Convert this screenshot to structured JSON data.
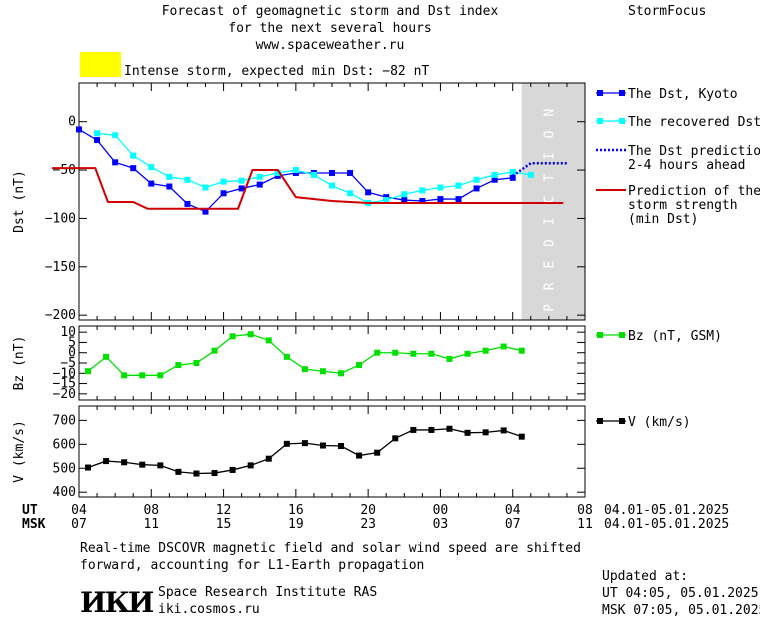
{
  "header": {
    "title_lines": [
      "Forecast of geomagnetic storm and Dst index",
      "for the next several hours",
      "www.spaceweather.ru"
    ],
    "brand": "StormFocus",
    "status_text": "Intense storm, expected min Dst: −82 nT",
    "status_color": "#ffff00"
  },
  "footer": {
    "note_lines": [
      "Real-time DSCOVR magnetic field and solar wind speed are shifted",
      "forward, accounting for L1-Earth propagation"
    ],
    "institute_name": "Space Research Institute RAS",
    "institute_url": "iki.cosmos.ru",
    "logo_text": "ИКИ",
    "updated_label": "Updated at:",
    "updated_ut": "UT   04:05, 05.01.2025",
    "updated_msk": "MSK 07:05, 05.01.2025"
  },
  "chart_data": [
    {
      "type": "line",
      "ylabel": "Dst (nT)",
      "ylim": [
        -205,
        40
      ],
      "yticks": [
        0,
        -50,
        -100,
        -150,
        -200
      ],
      "xlim": [
        4,
        32
      ],
      "prediction_region": {
        "x": [
          4,
          7.5
        ],
        "label": "PREDICTION",
        "color": "#d8d8d8"
      },
      "series": [
        {
          "name": "The Dst, Kyoto",
          "color": "#0000ff",
          "marker": "square",
          "x": [
            4,
            5,
            6,
            7,
            8,
            9,
            10,
            11,
            12,
            13,
            14,
            15,
            16,
            17,
            18,
            19,
            20,
            21,
            22,
            23,
            24,
            25,
            26,
            27,
            28
          ],
          "y": [
            -8,
            -19,
            -42,
            -48,
            -64,
            -67,
            -85,
            -93,
            -74,
            -69,
            -65,
            -56,
            -53,
            -53,
            -53,
            -53,
            -73,
            -78,
            -81,
            -82,
            -80,
            -80,
            -69,
            -60,
            -58
          ]
        },
        {
          "name": "The recovered Dst",
          "color": "#00ffff",
          "marker": "square",
          "x": [
            5,
            6,
            7,
            8,
            9,
            10,
            11,
            12,
            13,
            14,
            15,
            16,
            17,
            18,
            19,
            20,
            21,
            22,
            23,
            24,
            25,
            26,
            27,
            28,
            29
          ],
          "y": [
            -12,
            -14,
            -35,
            -47,
            -57,
            -60,
            -68,
            -62,
            -61,
            -57,
            -53,
            -50,
            -55,
            -66,
            -74,
            -84,
            -81,
            -75,
            -71,
            -68,
            -66,
            -60,
            -55,
            -52,
            -55
          ]
        },
        {
          "name": "The Dst prediction\n2-4 hours ahead",
          "color": "#0000ff",
          "style": "dotted",
          "x": [
            28,
            29,
            30,
            31
          ],
          "y": [
            -56,
            -43,
            -43,
            -43
          ]
        },
        {
          "name": "Prediction of the\nstorm strength\n(min Dst)",
          "color": "#d00000",
          "style": "step",
          "x": [
            2.5,
            4.9,
            5.6,
            7,
            7.8,
            12.8,
            13.6,
            15,
            16,
            18,
            20,
            30.8
          ],
          "y": [
            -48,
            -48,
            -83,
            -83,
            -90,
            -90,
            -50,
            -50,
            -78,
            -82,
            -84,
            -84
          ]
        }
      ]
    },
    {
      "type": "line",
      "ylabel": "Bz (nT)",
      "ylim": [
        -23,
        13
      ],
      "yticks": [
        10,
        5,
        0,
        -5,
        -10,
        -15,
        -20
      ],
      "ytick_labels": [
        "10",
        "5",
        "0",
        "−5",
        "−10",
        "−15",
        "−20"
      ],
      "series": [
        {
          "name": "Bz (nT, GSM)",
          "color": "#00e000",
          "marker": "square",
          "x": [
            4.5,
            5.5,
            6.5,
            7.5,
            8.5,
            9.5,
            10.5,
            11.5,
            12.5,
            13.5,
            14.5,
            15.5,
            16.5,
            17.5,
            18.5,
            19.5,
            20.5,
            21.5,
            22.5,
            23.5,
            24.5,
            25.5,
            26.5,
            27.5,
            28.5
          ],
          "y": [
            -9,
            -2,
            -11,
            -11,
            -11,
            -6,
            -5,
            1,
            8,
            9,
            6,
            -2,
            -8,
            -9,
            -10,
            -6,
            0,
            0,
            -0.5,
            -0.5,
            -3,
            -0.5,
            1,
            3,
            1
          ]
        }
      ]
    },
    {
      "type": "line",
      "ylabel": "V (km/s)",
      "ylim": [
        380,
        760
      ],
      "yticks": [
        400,
        500,
        600,
        700
      ],
      "xlabel_ut": [
        "04",
        "08",
        "12",
        "16",
        "20",
        "00",
        "04",
        "08"
      ],
      "xlabel_msk": [
        "07",
        "11",
        "15",
        "19",
        "23",
        "03",
        "07",
        "11"
      ],
      "x_label_ut_title": "UT",
      "x_label_msk_title": "MSK",
      "date_range": "04.01-05.01.2025",
      "series": [
        {
          "name": "V (km/s)",
          "color": "#000000",
          "marker": "square",
          "x": [
            4.5,
            5.5,
            6.5,
            7.5,
            8.5,
            9.5,
            10.5,
            11.5,
            12.5,
            13.5,
            14.5,
            15.5,
            16.5,
            17.5,
            18.5,
            19.5,
            20.5,
            21.5,
            22.5,
            23.5,
            24.5,
            25.5,
            26.5,
            27.5,
            28.5
          ],
          "y": [
            503,
            530,
            525,
            515,
            512,
            485,
            478,
            480,
            493,
            512,
            540,
            602,
            605,
            595,
            593,
            553,
            565,
            625,
            660,
            660,
            665,
            648,
            650,
            658,
            632
          ]
        }
      ]
    }
  ]
}
